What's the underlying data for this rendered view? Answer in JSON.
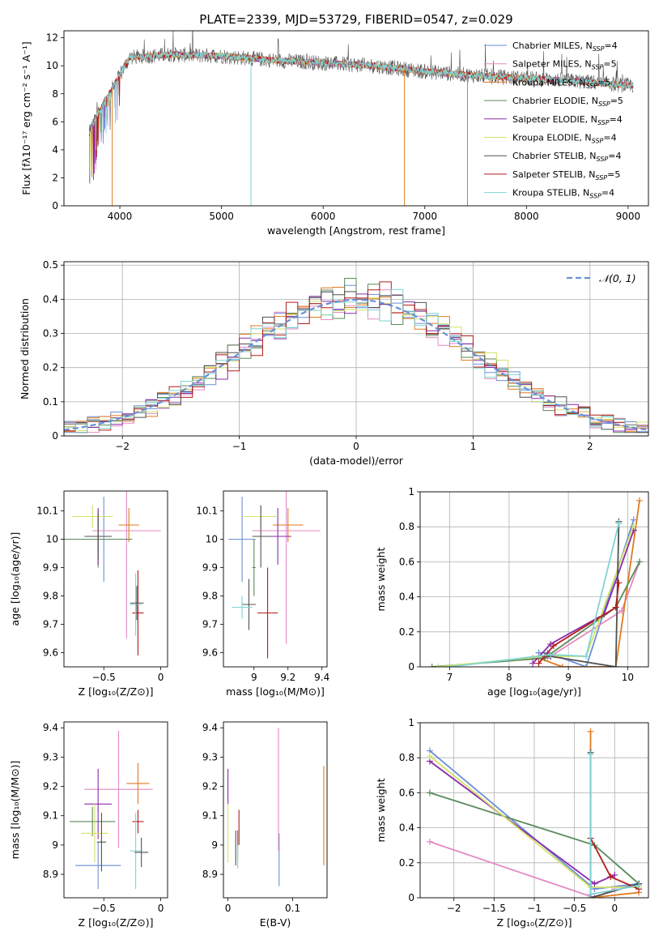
{
  "colors": [
    "#6a8fd8",
    "#e38ac2",
    "#e07a1f",
    "#5a8a5a",
    "#8a2aa8",
    "#d4e26a",
    "#505050",
    "#b41c1c",
    "#7ed4d4"
  ],
  "chart_data": [
    {
      "type": "line",
      "title": "PLATE=2339, MJD=53729, FIBERID=0547, z=0.029",
      "xlabel": "wavelength [Angstrom, rest frame]",
      "ylabel": "Flux [fλ10⁻¹⁷ erg cm⁻² s⁻¹ A⁻¹]",
      "xlim": [
        3450,
        9200
      ],
      "ylim": [
        0,
        12.5
      ],
      "xticks": [
        4000,
        5000,
        6000,
        7000,
        8000,
        9000
      ],
      "yticks": [
        0,
        2,
        4,
        6,
        8,
        10,
        12
      ],
      "spectrum_range": [
        3700,
        9050
      ],
      "spectrum_envelope": {
        "x": [
          3700,
          3750,
          3800,
          3900,
          4000,
          4100,
          4300,
          4500,
          5000,
          5500,
          6000,
          6500,
          7000,
          7500,
          8000,
          8500,
          9000
        ],
        "y": [
          5.2,
          6.0,
          6.8,
          8.0,
          9.4,
          10.6,
          10.7,
          10.8,
          10.7,
          10.4,
          10.2,
          10.0,
          9.6,
          9.3,
          9.1,
          8.9,
          8.6
        ]
      },
      "legend_location": "upper right",
      "series": [
        {
          "name": "Chabrier MILES, N",
          "sub": "SSP",
          "tail": "=4"
        },
        {
          "name": "Salpeter MILES, N",
          "sub": "SSP",
          "tail": "=5"
        },
        {
          "name": "Kroupa MILES, N",
          "sub": "SSP",
          "tail": "=5"
        },
        {
          "name": "Chabrier ELODIE, N",
          "sub": "SSP",
          "tail": "=5"
        },
        {
          "name": "Salpeter ELODIE, N",
          "sub": "SSP",
          "tail": "=4"
        },
        {
          "name": "Kroupa ELODIE, N",
          "sub": "SSP",
          "tail": "=4"
        },
        {
          "name": "Chabrier STELIB, N",
          "sub": "SSP",
          "tail": "=4"
        },
        {
          "name": "Salpeter STELIB, N",
          "sub": "SSP",
          "tail": "=5"
        },
        {
          "name": "Kroupa STELIB, N",
          "sub": "SSP",
          "tail": "=4"
        }
      ],
      "drops": [
        {
          "x": 3925,
          "series": 2,
          "y": 0
        },
        {
          "x": 5290,
          "series": 8,
          "y": 0
        },
        {
          "x": 6800,
          "series": 2,
          "y": 0
        },
        {
          "x": 7420,
          "series": 2,
          "y": 0
        }
      ]
    },
    {
      "type": "histogram",
      "xlabel": "(data-model)/error",
      "ylabel": "Normed distribution",
      "xlim": [
        -2.5,
        2.5
      ],
      "ylim": [
        0,
        0.51
      ],
      "xticks": [
        -2,
        -1,
        0,
        1,
        2
      ],
      "yticks": [
        0.0,
        0.1,
        0.2,
        0.3,
        0.4,
        0.5
      ],
      "bin_width": 0.1,
      "reference": {
        "name": "𝒩(0, 1)",
        "mean": 0,
        "sigma": 1
      },
      "legend_location": "upper right"
    },
    {
      "type": "scatter-errorbar",
      "xlabel": "Z [log₁₀(Z/Z⊙)]",
      "ylabel": "age  [log₁₀(age/yr)]",
      "xlim": [
        -0.85,
        0.06
      ],
      "ylim": [
        9.55,
        10.17
      ],
      "xticks": [
        -0.5,
        0.0
      ],
      "yticks": [
        9.6,
        9.7,
        9.8,
        9.9,
        10.0,
        10.1
      ],
      "points": [
        {
          "x": -0.5,
          "y": 10.0,
          "dx": 0.1,
          "dy": 0.15,
          "c": 0
        },
        {
          "x": -0.3,
          "y": 10.03,
          "dx": 0.3,
          "dy": 0.38,
          "c": 1
        },
        {
          "x": -0.28,
          "y": 10.05,
          "dx": 0.09,
          "dy": 0.06,
          "c": 2
        },
        {
          "x": -0.55,
          "y": 10.0,
          "dx": 0.3,
          "dy": 0.1,
          "c": 3
        },
        {
          "x": -0.55,
          "y": 10.01,
          "dx": 0.11,
          "dy": 0.1,
          "c": 4
        },
        {
          "x": -0.6,
          "y": 10.08,
          "dx": 0.18,
          "dy": 0.04,
          "c": 5
        },
        {
          "x": -0.55,
          "y": 10.01,
          "dx": 0.12,
          "dy": 0.08,
          "c": 6
        },
        {
          "x": -0.2,
          "y": 9.74,
          "dx": 0.05,
          "dy": 0.15,
          "c": 7
        },
        {
          "x": -0.22,
          "y": 9.77,
          "dx": 0.05,
          "dy": 0.11,
          "c": 8
        },
        {
          "x": -0.21,
          "y": 9.775,
          "dx": 0.06,
          "dy": 0.06,
          "c": 6
        }
      ]
    },
    {
      "type": "scatter-errorbar",
      "xlabel": "mass [log₁₀(M/M⊙)]",
      "ylabel": "",
      "xlim": [
        8.82,
        9.43
      ],
      "ylim": [
        9.55,
        10.17
      ],
      "xticks": [
        9.0,
        9.2,
        9.4
      ],
      "yticks": [
        9.6,
        9.7,
        9.8,
        9.9,
        10.0,
        10.1
      ],
      "points": [
        {
          "x": 8.93,
          "y": 10.0,
          "dx": 0.08,
          "dy": 0.15,
          "c": 0
        },
        {
          "x": 9.19,
          "y": 10.03,
          "dx": 0.2,
          "dy": 0.4,
          "c": 1
        },
        {
          "x": 9.2,
          "y": 10.05,
          "dx": 0.09,
          "dy": 0.06,
          "c": 2
        },
        {
          "x": 9.0,
          "y": 9.9,
          "dx": 0.01,
          "dy": 0.1,
          "c": 3
        },
        {
          "x": 9.14,
          "y": 10.01,
          "dx": 0.08,
          "dy": 0.1,
          "c": 4
        },
        {
          "x": 9.04,
          "y": 10.08,
          "dx": 0.1,
          "dy": 0.04,
          "c": 5
        },
        {
          "x": 8.97,
          "y": 9.77,
          "dx": 0.04,
          "dy": 0.09,
          "c": 6
        },
        {
          "x": 9.08,
          "y": 9.74,
          "dx": 0.06,
          "dy": 0.16,
          "c": 7
        },
        {
          "x": 8.93,
          "y": 9.76,
          "dx": 0.06,
          "dy": 0.04,
          "c": 8
        },
        {
          "x": 9.04,
          "y": 10.01,
          "dx": 0.05,
          "dy": 0.11,
          "c": 6
        }
      ]
    },
    {
      "type": "line",
      "xlabel": "age  [log₁₀(age/yr)]",
      "ylabel": "mass weight",
      "xlim": [
        6.5,
        10.35
      ],
      "ylim": [
        0,
        1.0
      ],
      "xticks": [
        7,
        8,
        9,
        10
      ],
      "yticks": [
        0.0,
        0.2,
        0.4,
        0.6,
        0.8,
        1.0
      ],
      "series": [
        {
          "c": 0,
          "x": [
            8.5,
            8.65,
            9.3,
            10.1
          ],
          "y": [
            0.08,
            0.08,
            0.0,
            0.84
          ]
        },
        {
          "c": 1,
          "x": [
            8.4,
            8.65,
            9.9,
            10.2
          ],
          "y": [
            0.05,
            0.05,
            0.32,
            0.6
          ]
        },
        {
          "c": 2,
          "x": [
            8.5,
            8.9,
            9.8,
            10.2
          ],
          "y": [
            0.05,
            0.0,
            0.0,
            0.95
          ]
        },
        {
          "c": 3,
          "x": [
            6.7,
            8.6,
            9.8,
            10.2
          ],
          "y": [
            0.0,
            0.05,
            0.34,
            0.6
          ]
        },
        {
          "c": 4,
          "x": [
            8.4,
            8.7,
            9.6,
            10.1
          ],
          "y": [
            0.02,
            0.13,
            0.3,
            0.78
          ]
        },
        {
          "c": 5,
          "x": [
            6.8,
            8.6,
            9.3,
            10.1
          ],
          "y": [
            0.0,
            0.06,
            0.06,
            0.81
          ]
        },
        {
          "c": 6,
          "x": [
            8.6,
            8.7,
            9.8,
            9.85
          ],
          "y": [
            0.06,
            0.06,
            0.0,
            0.83
          ]
        },
        {
          "c": 7,
          "x": [
            8.5,
            8.75,
            9.8,
            9.85
          ],
          "y": [
            0.02,
            0.12,
            0.34,
            0.48
          ]
        },
        {
          "c": 8,
          "x": [
            7.0,
            8.7,
            9.3,
            9.85
          ],
          "y": [
            0.0,
            0.07,
            0.06,
            0.82
          ]
        }
      ]
    },
    {
      "type": "scatter-errorbar",
      "xlabel": "Z [log₁₀(Z/Z⊙)]",
      "ylabel": "mass [log₁₀(M/M⊙)]",
      "xlim": [
        -0.85,
        0.06
      ],
      "ylim": [
        8.82,
        9.42
      ],
      "xticks": [
        -0.5,
        0.0
      ],
      "yticks": [
        8.9,
        9.0,
        9.1,
        9.2,
        9.3,
        9.4
      ],
      "points": [
        {
          "x": -0.55,
          "y": 8.93,
          "dx": 0.2,
          "dy": 0.08,
          "c": 0
        },
        {
          "x": -0.37,
          "y": 9.19,
          "dx": 0.3,
          "dy": 0.2,
          "c": 1
        },
        {
          "x": -0.2,
          "y": 9.21,
          "dx": 0.1,
          "dy": 0.07,
          "c": 2
        },
        {
          "x": -0.6,
          "y": 9.08,
          "dx": 0.2,
          "dy": 0.05,
          "c": 3
        },
        {
          "x": -0.55,
          "y": 9.14,
          "dx": 0.12,
          "dy": 0.12,
          "c": 4
        },
        {
          "x": -0.58,
          "y": 9.04,
          "dx": 0.12,
          "dy": 0.1,
          "c": 5
        },
        {
          "x": -0.52,
          "y": 9.01,
          "dx": 0.04,
          "dy": 0.1,
          "c": 6
        },
        {
          "x": -0.2,
          "y": 9.08,
          "dx": 0.05,
          "dy": 0.04,
          "c": 7
        },
        {
          "x": -0.22,
          "y": 8.98,
          "dx": 0.05,
          "dy": 0.13,
          "c": 8
        },
        {
          "x": -0.17,
          "y": 8.975,
          "dx": 0.06,
          "dy": 0.05,
          "c": 6
        }
      ]
    },
    {
      "type": "scatter-errorbar",
      "xlabel": "E(B-V)",
      "ylabel": "",
      "xlim": [
        -0.007,
        0.153
      ],
      "ylim": [
        8.82,
        9.42
      ],
      "xticks": [
        0.0,
        0.1
      ],
      "yticks": [
        8.9,
        9.0,
        9.1,
        9.2,
        9.3,
        9.4
      ],
      "points": [
        {
          "x": 0.079,
          "y": 8.95,
          "dx": 0,
          "dy": 0.09,
          "c": 0
        },
        {
          "x": 0.078,
          "y": 9.19,
          "dx": 0,
          "dy": 0.21,
          "c": 1
        },
        {
          "x": 0.148,
          "y": 9.1,
          "dx": 0,
          "dy": 0.17,
          "c": 2
        },
        {
          "x": 0.015,
          "y": 9.0,
          "dx": 0,
          "dy": 0.05,
          "c": 3
        },
        {
          "x": 0.0,
          "y": 9.2,
          "dx": 0,
          "dy": 0.06,
          "c": 4
        },
        {
          "x": 0.0,
          "y": 9.04,
          "dx": 0,
          "dy": 0.1,
          "c": 5
        },
        {
          "x": 0.012,
          "y": 8.99,
          "dx": 0,
          "dy": 0.06,
          "c": 6
        },
        {
          "x": 0.017,
          "y": 9.06,
          "dx": 0,
          "dy": 0.06,
          "c": 7
        },
        {
          "x": 0.015,
          "y": 8.96,
          "dx": 0,
          "dy": 0.04,
          "c": 8
        }
      ]
    },
    {
      "type": "line",
      "xlabel": "Z [log₁₀(Z/Z⊙)]",
      "ylabel": "mass weight",
      "xlim": [
        -2.42,
        0.42
      ],
      "ylim": [
        0,
        1.0
      ],
      "xticks": [
        -2.0,
        -1.5,
        -1.0,
        -0.5,
        0.0
      ],
      "yticks": [
        0.0,
        0.2,
        0.4,
        0.6,
        0.8,
        1.0
      ],
      "series": [
        {
          "c": 0,
          "x": [
            -2.3,
            -0.25,
            0.3
          ],
          "y": [
            0.84,
            0.05,
            0.08
          ]
        },
        {
          "c": 1,
          "x": [
            -2.3,
            -0.25,
            0.0
          ],
          "y": [
            0.32,
            0.0,
            0.05
          ]
        },
        {
          "c": 2,
          "x": [
            -0.3,
            -0.3,
            0.3
          ],
          "y": [
            0.95,
            0.0,
            0.03
          ]
        },
        {
          "c": 3,
          "x": [
            -2.3,
            -0.25,
            0.3
          ],
          "y": [
            0.6,
            0.3,
            0.08
          ]
        },
        {
          "c": 4,
          "x": [
            -2.3,
            -0.25,
            0.0
          ],
          "y": [
            0.78,
            0.08,
            0.13
          ]
        },
        {
          "c": 5,
          "x": [
            -2.3,
            -0.3,
            0.3
          ],
          "y": [
            0.81,
            0.06,
            0.06
          ]
        },
        {
          "c": 6,
          "x": [
            -0.3,
            -0.3,
            0.3
          ],
          "y": [
            0.83,
            0.0,
            0.08
          ]
        },
        {
          "c": 7,
          "x": [
            -0.3,
            -0.05,
            0.3
          ],
          "y": [
            0.34,
            0.12,
            0.05
          ]
        },
        {
          "c": 8,
          "x": [
            -0.3,
            -0.3,
            0.3
          ],
          "y": [
            0.82,
            0.02,
            0.07
          ]
        }
      ]
    }
  ]
}
